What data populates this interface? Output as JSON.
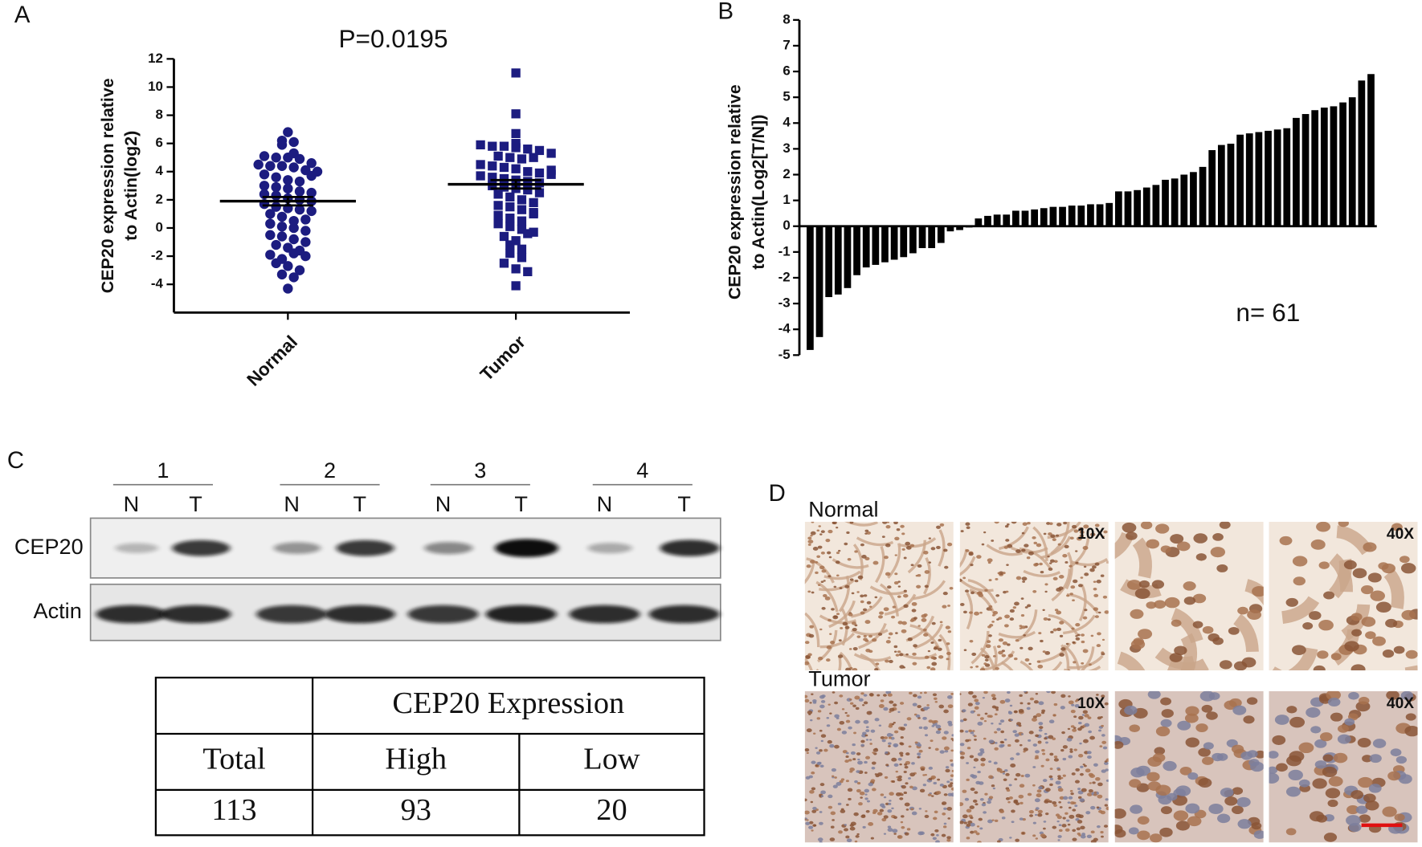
{
  "panels": [
    "A",
    "B",
    "C",
    "D"
  ],
  "chart_data": [
    {
      "type": "strip",
      "annotation": "P=0.0195",
      "ylabel": [
        "CEP20 expression relative",
        "to Actin(log2)"
      ],
      "categories": [
        "Normal",
        "Tumor"
      ],
      "ylim": [
        -6,
        12
      ],
      "yticks": [
        -4,
        -2,
        0,
        2,
        4,
        6,
        8,
        10,
        12
      ],
      "series": [
        {
          "name": "Normal",
          "color": "#1c1c80",
          "marker": "circle",
          "mean": 1.9,
          "sem": 0.3,
          "values": [
            6.8,
            6.2,
            6.1,
            5.9,
            5.3,
            5.1,
            5.0,
            5.0,
            4.9,
            4.6,
            4.5,
            4.4,
            4.4,
            4.3,
            4.1,
            3.8,
            3.6,
            3.4,
            3.3,
            3.0,
            2.9,
            2.8,
            2.6,
            2.4,
            2.3,
            2.1,
            2.0,
            1.9,
            1.7,
            1.5,
            1.4,
            1.3,
            1.2,
            1.0,
            0.8,
            0.5,
            0.3,
            0.1,
            0,
            -0.2,
            -0.5,
            -0.6,
            -0.8,
            -1.0,
            -1.2,
            -1.4,
            -1.6,
            -1.9,
            -2.2,
            -2.5,
            -2.7,
            -3.0,
            -3.3,
            -3.5,
            -4.3,
            -1.8,
            0.6,
            3.7,
            4.0,
            2.5,
            -2.0
          ]
        },
        {
          "name": "Tumor",
          "color": "#1c1c80",
          "marker": "square",
          "mean": 3.1,
          "sem": 0.3,
          "values": [
            11.0,
            8.1,
            6.7,
            6.0,
            5.9,
            5.8,
            5.8,
            5.7,
            5.6,
            5.5,
            5.3,
            5.1,
            5.0,
            4.9,
            4.5,
            4.4,
            4.3,
            4.2,
            4.0,
            3.9,
            3.7,
            3.6,
            3.5,
            3.4,
            3.3,
            3.2,
            3.0,
            2.9,
            2.8,
            2.7,
            2.5,
            2.4,
            2.2,
            2.0,
            1.8,
            1.6,
            1.5,
            1.3,
            1.1,
            0.9,
            0.7,
            0.5,
            0.3,
            0.1,
            -0.1,
            -0.3,
            -0.6,
            -0.9,
            -1.2,
            -1.5,
            -1.8,
            -2.1,
            -2.5,
            -2.9,
            -3.1,
            -4.1,
            1.0,
            4.1,
            5.0,
            3.8,
            -0.4
          ]
        }
      ]
    },
    {
      "type": "bar",
      "annotation": "n= 61",
      "color": "#000000",
      "ylabel": [
        "CEP20 expression relative",
        "to Actin(Log2[T/N])"
      ],
      "ylim": [
        -5,
        8
      ],
      "yticks": [
        -5,
        -4,
        -3,
        -2,
        -1,
        0,
        1,
        2,
        3,
        4,
        5,
        6,
        7,
        8
      ],
      "values": [
        -4.8,
        -4.3,
        -2.75,
        -2.65,
        -2.4,
        -1.9,
        -1.6,
        -1.5,
        -1.4,
        -1.3,
        -1.2,
        -1.05,
        -0.85,
        -0.85,
        -0.65,
        -0.2,
        -0.15,
        -0.05,
        0.3,
        0.4,
        0.45,
        0.45,
        0.6,
        0.6,
        0.65,
        0.7,
        0.75,
        0.75,
        0.8,
        0.8,
        0.85,
        0.85,
        0.9,
        1.35,
        1.35,
        1.4,
        1.5,
        1.6,
        1.8,
        1.85,
        2.0,
        2.1,
        2.3,
        2.95,
        3.15,
        3.2,
        3.55,
        3.6,
        3.65,
        3.7,
        3.75,
        3.8,
        4.2,
        4.35,
        4.5,
        4.6,
        4.65,
        4.8,
        5.0,
        5.65,
        5.9
      ]
    }
  ],
  "blot": {
    "lanes": [
      {
        "label": "1",
        "samples": [
          "N",
          "T"
        ]
      },
      {
        "label": "2",
        "samples": [
          "N",
          "T"
        ]
      },
      {
        "label": "3",
        "samples": [
          "N",
          "T"
        ]
      },
      {
        "label": "4",
        "samples": [
          "N",
          "T"
        ]
      }
    ],
    "rows": [
      "CEP20",
      "Actin"
    ]
  },
  "table": {
    "rows": [
      [
        "CEP20 Expression"
      ],
      [
        "Total",
        "High",
        "Low"
      ],
      [
        113,
        93,
        20
      ]
    ]
  },
  "micrographs": {
    "rows": [
      "Normal",
      "Tumor"
    ],
    "magnifications": [
      "10X",
      "40X"
    ]
  }
}
